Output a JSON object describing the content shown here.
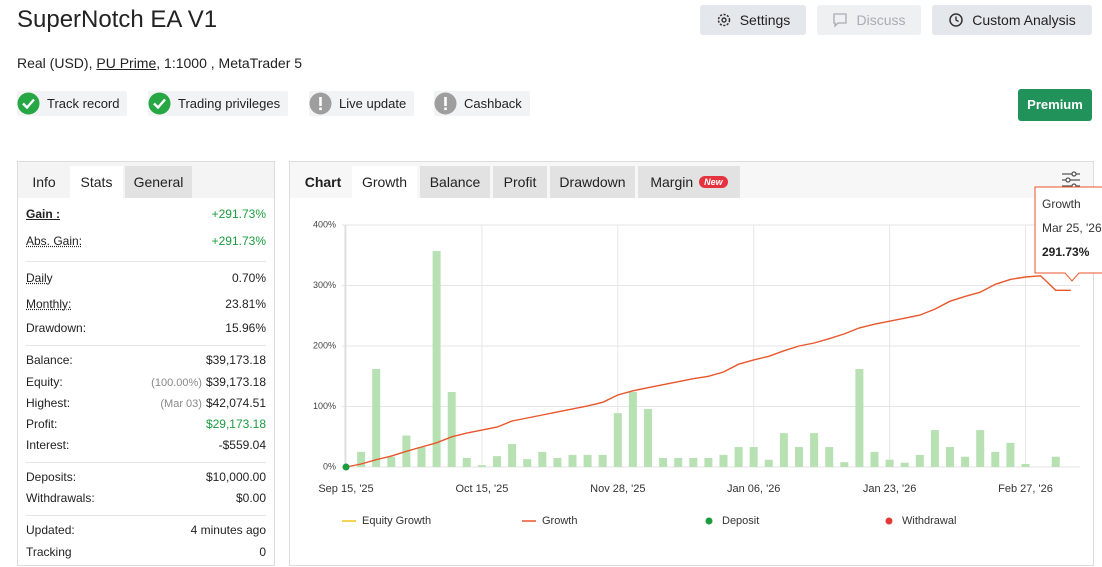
{
  "header": {
    "title": "SuperNotch EA V1",
    "subtitle": {
      "before": "Real (USD),",
      "link": "PU Prime",
      "after": ", 1:1000 , MetaTrader 5"
    },
    "buttons": [
      "Settings",
      "Discuss",
      "Custom Analysis"
    ],
    "badges": [
      {
        "label": "Track record",
        "status": "verified"
      },
      {
        "label": "Trading privileges",
        "status": "verified"
      },
      {
        "label": "Live update",
        "status": "warning"
      },
      {
        "label": "Cashback",
        "status": "warning"
      }
    ],
    "premium": "Premium"
  },
  "stats": {
    "tabs": [
      "Info",
      "Stats",
      "General"
    ],
    "groups": [
      [
        {
          "label": "Gain :",
          "value": "+291.73%",
          "color": "#1a9c3e"
        },
        {
          "label": "Abs. Gain:",
          "value": "+291.73%",
          "color": "#1a9c3e"
        }
      ],
      [
        {
          "label": "Daily",
          "value": "0.70%"
        },
        {
          "label": "Monthly:",
          "value": "23.81%"
        },
        {
          "label": "Drawdown:",
          "value": "15.96%"
        }
      ],
      [
        {
          "label": "Balance:",
          "value": "$39,173.18"
        },
        {
          "label": "Equity:",
          "note": "(100.00%)",
          "value": "$39,173.18"
        },
        {
          "label": "Highest:",
          "note": "(Mar 03)",
          "value": "$42,074.51"
        },
        {
          "label": "Profit:",
          "value": "$29,173.18",
          "color": "#1a9c3e"
        },
        {
          "label": "Interest:",
          "value": "-$559.04"
        }
      ],
      [
        {
          "label": "Deposits:",
          "value": "$10,000.00"
        },
        {
          "label": "Withdrawals:",
          "value": "$0.00"
        }
      ],
      [
        {
          "label": "Updated:",
          "value": "4 minutes ago"
        },
        {
          "label": "Tracking",
          "value": "0"
        }
      ]
    ]
  },
  "chart_tabs": {
    "title": "Chart",
    "tabs": [
      "Growth",
      "Balance",
      "Profit",
      "Drawdown",
      "Margin"
    ],
    "new_badge": "New"
  },
  "chart_data": {
    "type": "line",
    "categories": [
      "Sep 15, '25",
      null,
      null,
      null,
      null,
      null,
      null,
      null,
      null,
      "Oct 15, '25",
      null,
      null,
      null,
      null,
      null,
      null,
      null,
      null,
      "Nov 28, '25",
      null,
      null,
      null,
      null,
      null,
      null,
      null,
      null,
      "Jan 06, '26",
      null,
      null,
      null,
      null,
      null,
      null,
      null,
      null,
      "Jan 23, '26",
      null,
      null,
      null,
      null,
      null,
      null,
      null,
      null,
      "Feb 27, '26",
      null,
      null,
      null
    ],
    "series": [
      {
        "name": "Growth",
        "color": "#e8562a",
        "values": [
          0,
          5,
          12,
          18,
          26,
          33,
          40,
          50,
          56,
          61,
          66,
          76,
          81,
          86,
          91,
          96,
          101,
          107,
          119,
          126,
          131,
          136,
          141,
          146,
          150,
          157,
          170,
          177,
          183,
          192,
          200,
          205,
          212,
          220,
          230,
          236,
          241,
          246,
          251,
          261,
          274,
          282,
          289,
          302,
          310,
          314,
          316,
          292,
          292
        ]
      }
    ],
    "bars": {
      "color": "#b7e1b3",
      "values": [
        null,
        25,
        162,
        17,
        52,
        33,
        357,
        124,
        15,
        3,
        18,
        38,
        13,
        25,
        15,
        20,
        20,
        20,
        89,
        124,
        96,
        15,
        15,
        15,
        15,
        20,
        33,
        33,
        12,
        56,
        33,
        56,
        33,
        8,
        162,
        25,
        12,
        7,
        20,
        61,
        33,
        17,
        61,
        25,
        40,
        5,
        null,
        17,
        null
      ]
    },
    "deposits": {
      "color": "#1a9c3e",
      "values": [
        0,
        null,
        null,
        null,
        null,
        null,
        null,
        null,
        null,
        null,
        null,
        null,
        null,
        null,
        null,
        null,
        null,
        null,
        null,
        null,
        null,
        null,
        null,
        null,
        null,
        null,
        null,
        null,
        null,
        null,
        null,
        null,
        null,
        null,
        null,
        null,
        null,
        null,
        null,
        null,
        null,
        null,
        null,
        null,
        null,
        null,
        null,
        null,
        null
      ]
    },
    "ylim": [
      0,
      400
    ],
    "yticks": [
      {
        "value": 0,
        "label": "0%"
      },
      {
        "value": 100,
        "label": "100%"
      },
      {
        "value": 200,
        "label": "200%"
      },
      {
        "value": 300,
        "label": "300%"
      },
      {
        "value": 400,
        "label": "400%"
      }
    ],
    "grid": true,
    "legend": [
      {
        "name": "Equity Growth",
        "color": "#f0c419",
        "marker": "line"
      },
      {
        "name": "Growth",
        "color": "#e8562a",
        "marker": "line"
      },
      {
        "name": "Deposit",
        "color": "#1a9c3e",
        "marker": "dot"
      },
      {
        "name": "Withdrawal",
        "color": "#e53935",
        "marker": "dot"
      }
    ],
    "tooltip": {
      "series": "Growth",
      "date": "Mar 25, '26",
      "value": 291.73,
      "value_label": "291.73%"
    }
  }
}
